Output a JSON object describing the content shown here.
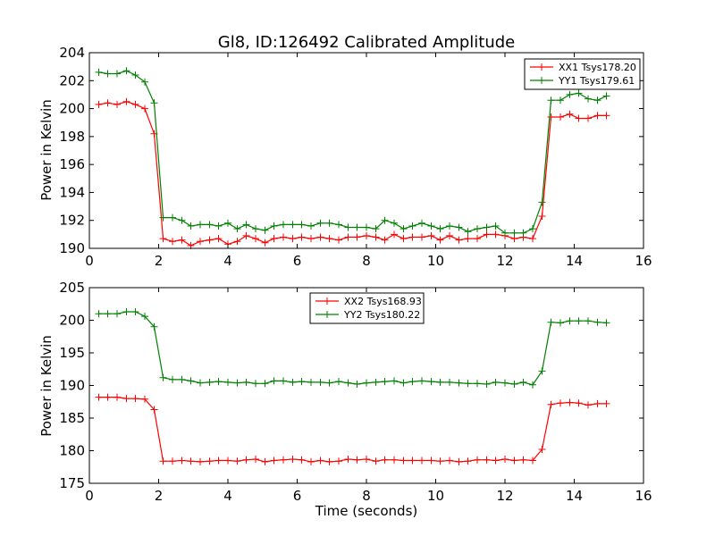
{
  "chart_data": [
    {
      "type": "line",
      "title": "Gl8, ID:126492 Calibrated Amplitude",
      "xlabel": "",
      "ylabel": "Power in Kelvin",
      "xlim": [
        0,
        16
      ],
      "ylim": [
        190,
        204
      ],
      "xticks": [
        0,
        2,
        4,
        6,
        8,
        10,
        12,
        14,
        16
      ],
      "yticks": [
        190,
        192,
        194,
        196,
        198,
        200,
        202,
        204
      ],
      "legend_position": "top-right",
      "grid": false,
      "x": [
        0.27,
        0.53,
        0.8,
        1.07,
        1.33,
        1.6,
        1.87,
        2.13,
        2.4,
        2.67,
        2.93,
        3.2,
        3.47,
        3.73,
        4.0,
        4.27,
        4.53,
        4.8,
        5.07,
        5.33,
        5.6,
        5.87,
        6.13,
        6.4,
        6.67,
        6.93,
        7.2,
        7.47,
        7.73,
        8.0,
        8.27,
        8.53,
        8.8,
        9.07,
        9.33,
        9.6,
        9.87,
        10.13,
        10.4,
        10.67,
        10.93,
        11.2,
        11.47,
        11.73,
        12.0,
        12.27,
        12.53,
        12.8,
        13.07,
        13.33,
        13.6,
        13.87,
        14.13,
        14.4,
        14.67,
        14.93
      ],
      "series": [
        {
          "name": "XX1 Tsys178.20",
          "color": "#ff0000",
          "values": [
            200.3,
            200.4,
            200.3,
            200.5,
            200.3,
            200.0,
            198.2,
            190.7,
            190.5,
            190.6,
            190.2,
            190.5,
            190.6,
            190.7,
            190.3,
            190.5,
            190.9,
            190.7,
            190.4,
            190.7,
            190.8,
            190.7,
            190.8,
            190.7,
            190.8,
            190.7,
            190.6,
            190.8,
            190.8,
            190.9,
            190.8,
            190.6,
            191.0,
            190.7,
            190.8,
            190.8,
            190.9,
            190.6,
            190.9,
            190.6,
            190.7,
            190.7,
            191.0,
            191.0,
            190.9,
            190.7,
            190.8,
            190.7,
            192.3,
            199.4,
            199.4,
            199.6,
            199.3,
            199.3,
            199.5,
            199.5
          ]
        },
        {
          "name": "YY1 Tsys179.61",
          "color": "#008000",
          "values": [
            202.6,
            202.5,
            202.5,
            202.7,
            202.4,
            201.9,
            200.4,
            192.2,
            192.2,
            192.0,
            191.6,
            191.7,
            191.7,
            191.6,
            191.8,
            191.4,
            191.7,
            191.4,
            191.3,
            191.6,
            191.7,
            191.7,
            191.7,
            191.6,
            191.8,
            191.8,
            191.7,
            191.5,
            191.5,
            191.5,
            191.4,
            192.0,
            191.8,
            191.4,
            191.6,
            191.8,
            191.6,
            191.4,
            191.6,
            191.5,
            191.2,
            191.4,
            191.5,
            191.6,
            191.1,
            191.1,
            191.1,
            191.4,
            193.3,
            200.6,
            200.6,
            201.0,
            201.1,
            200.7,
            200.6,
            200.9
          ]
        }
      ]
    },
    {
      "type": "line",
      "title": "",
      "xlabel": "Time (seconds)",
      "ylabel": "Power in Kelvin",
      "xlim": [
        0,
        16
      ],
      "ylim": [
        175,
        205
      ],
      "xticks": [
        0,
        2,
        4,
        6,
        8,
        10,
        12,
        14,
        16
      ],
      "yticks": [
        175,
        180,
        185,
        190,
        195,
        200,
        205
      ],
      "legend_position": "top-center",
      "grid": false,
      "x": [
        0.27,
        0.53,
        0.8,
        1.07,
        1.33,
        1.6,
        1.87,
        2.13,
        2.4,
        2.67,
        2.93,
        3.2,
        3.47,
        3.73,
        4.0,
        4.27,
        4.53,
        4.8,
        5.07,
        5.33,
        5.6,
        5.87,
        6.13,
        6.4,
        6.67,
        6.93,
        7.2,
        7.47,
        7.73,
        8.0,
        8.27,
        8.53,
        8.8,
        9.07,
        9.33,
        9.6,
        9.87,
        10.13,
        10.4,
        10.67,
        10.93,
        11.2,
        11.47,
        11.73,
        12.0,
        12.27,
        12.53,
        12.8,
        13.07,
        13.33,
        13.6,
        13.87,
        14.13,
        14.4,
        14.67,
        14.93
      ],
      "series": [
        {
          "name": "XX2 Tsys168.93",
          "color": "#ff0000",
          "values": [
            188.2,
            188.2,
            188.2,
            188.0,
            188.0,
            187.9,
            186.3,
            178.4,
            178.4,
            178.5,
            178.4,
            178.3,
            178.4,
            178.5,
            178.5,
            178.4,
            178.6,
            178.7,
            178.3,
            178.5,
            178.6,
            178.7,
            178.6,
            178.3,
            178.5,
            178.3,
            178.4,
            178.7,
            178.6,
            178.7,
            178.4,
            178.6,
            178.6,
            178.5,
            178.5,
            178.5,
            178.5,
            178.4,
            178.5,
            178.3,
            178.4,
            178.6,
            178.6,
            178.5,
            178.7,
            178.5,
            178.6,
            178.5,
            180.2,
            187.1,
            187.3,
            187.4,
            187.3,
            187.0,
            187.2,
            187.2
          ]
        },
        {
          "name": "YY2 Tsys180.22",
          "color": "#008000",
          "values": [
            201.0,
            201.0,
            201.0,
            201.3,
            201.3,
            200.6,
            199.0,
            191.2,
            190.9,
            190.9,
            190.7,
            190.4,
            190.5,
            190.6,
            190.5,
            190.4,
            190.5,
            190.3,
            190.3,
            190.7,
            190.7,
            190.5,
            190.6,
            190.5,
            190.5,
            190.4,
            190.6,
            190.4,
            190.2,
            190.4,
            190.5,
            190.6,
            190.7,
            190.4,
            190.6,
            190.7,
            190.6,
            190.5,
            190.5,
            190.4,
            190.3,
            190.3,
            190.2,
            190.5,
            190.4,
            190.2,
            190.5,
            190.1,
            192.2,
            199.7,
            199.6,
            199.9,
            199.9,
            199.9,
            199.7,
            199.6
          ]
        }
      ]
    }
  ]
}
